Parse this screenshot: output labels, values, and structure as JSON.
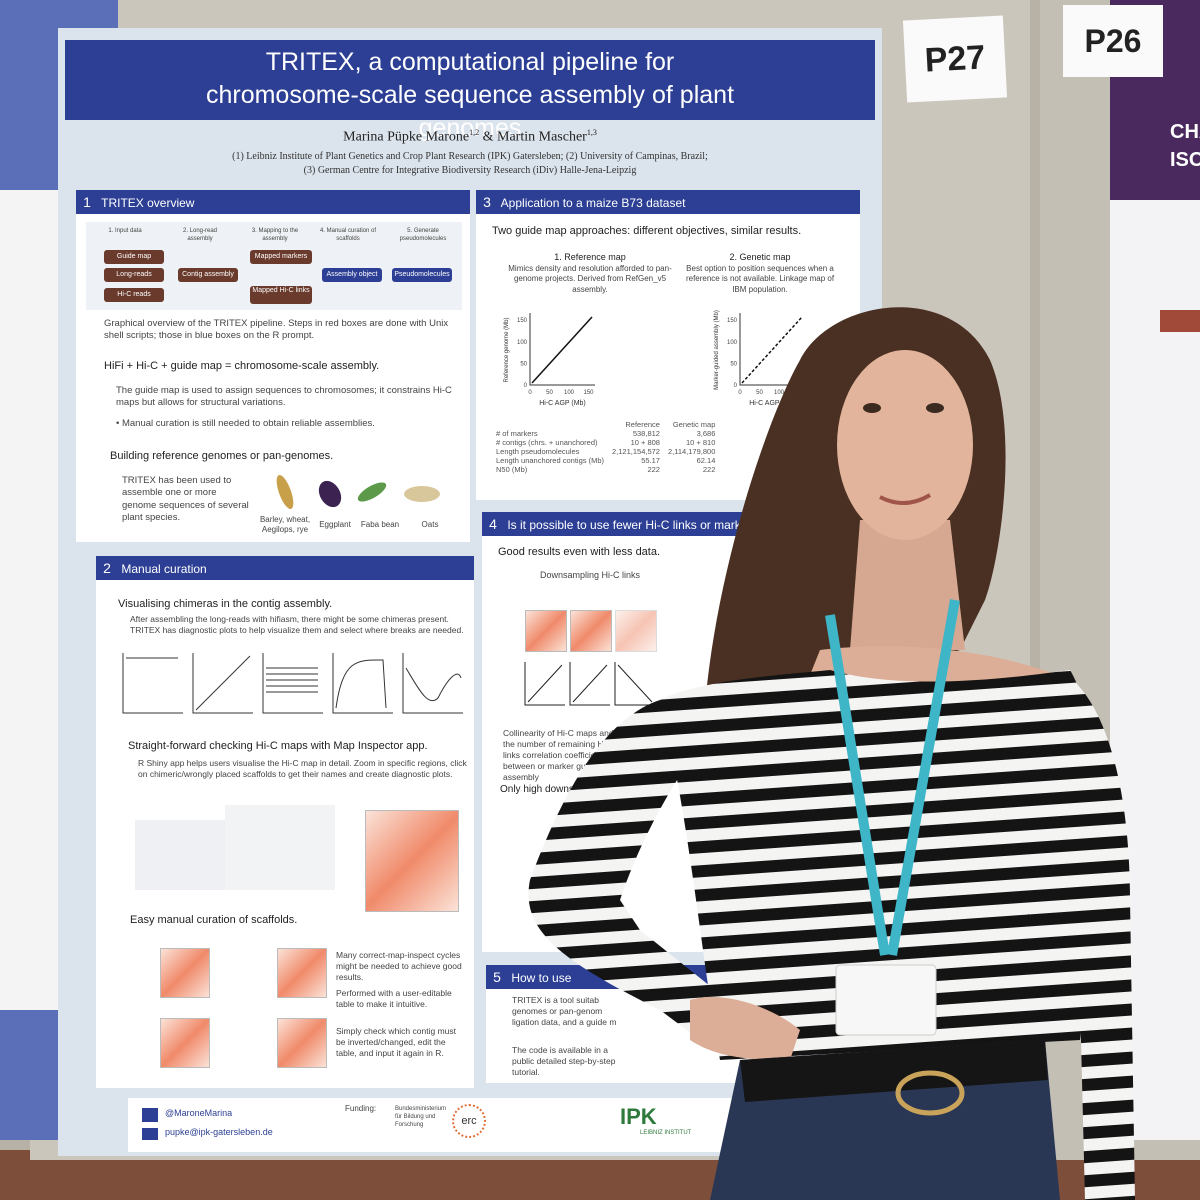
{
  "labels": {
    "poster_number": "P27",
    "neighbor_number": "P26"
  },
  "poster": {
    "title": "TRITEX, a computational pipeline for chromosome-scale sequence assembly of plant genomes",
    "authors": [
      {
        "name": "Marina Püpke Marone",
        "affil": "1,2"
      },
      {
        "name": "Martin Mascher",
        "affil": "1,3"
      }
    ],
    "author_joiner": "&",
    "affiliations": [
      "(1) Leibniz Institute of Plant Genetics and Crop Plant Research (IPK) Gatersleben; (2) University of Campinas, Brazil;",
      "(3) German Centre for Integrative Biodiversity Research (iDiv) Halle-Jena-Leipzig"
    ],
    "sections": [
      {
        "number": "1",
        "heading": "TRITEX overview",
        "steps": [
          "1. Input data",
          "2. Long-read assembly",
          "3. Mapping to the assembly",
          "4. Manual curation of scaffolds",
          "5. Generate pseudomolecules"
        ],
        "boxes": [
          "Guide map",
          "Long-reads",
          "Hi-C reads",
          "Contig assembly",
          "Mapped markers",
          "Mapped Hi-C links",
          "Assembly object",
          "Pseudomolecules"
        ],
        "caption": "Graphical overview of the TRITEX pipeline. Steps in red boxes are done with Unix shell scripts; those in blue boxes on the R prompt.",
        "subheading": "HiFi + Hi-C + guide map = chromosome-scale assembly.",
        "text": "The guide map is used to assign sequences to chromosomes; it constrains Hi-C maps but allows for structural variations.",
        "bullet": "Manual curation is still needed to obtain reliable assemblies.",
        "subheading2": "Building reference genomes or pan-genomes.",
        "text2": "TRITEX has been used to assemble one or more genome sequences of several plant species.",
        "crops": [
          "Barley, wheat, Aegilops, rye",
          "Eggplant",
          "Faba bean",
          "Oats"
        ]
      },
      {
        "number": "2",
        "heading": "Manual curation",
        "subheading": "Visualising chimeras in the contig assembly.",
        "text": "After assembling the long-reads with hifiasm, there might be some chimeras present. TRITEX has diagnostic plots to help visualize them and select where breaks are needed.",
        "subheading2": "Straight-forward checking Hi-C maps with Map Inspector app.",
        "text2": "R Shiny app helps users visualise the Hi-C map in detail. Zoom in specific regions, click on chimeric/wrongly placed scaffolds to get their names and create diagnostic plots.",
        "subheading3": "Easy manual curation of scaffolds.",
        "points": [
          "Many correct-map-inspect cycles might be needed to achieve good results.",
          "Performed with a user-editable table to make it intuitive.",
          "Simply check which contig must be inverted/changed, edit the table, and input it again in R."
        ]
      },
      {
        "number": "3",
        "heading": "Application to a maize B73 dataset",
        "subheading": "Two guide map approaches: different objectives, similar results.",
        "maps": [
          {
            "name": "1. Reference map",
            "text": "Mimics density and resolution afforded to pan-genome projects. Derived from RefGen_v5 assembly.",
            "ylabel": "Reference genome (Mb)"
          },
          {
            "name": "2. Genetic map",
            "text": "Best option to position sequences when a reference is not available. Linkage map of IBM population.",
            "ylabel": "Marker-guided assembly (Mb)"
          }
        ],
        "xlabel": "Hi-C AGP (Mb)",
        "ticks": [
          "0",
          "50",
          "100",
          "150"
        ],
        "table": [
          [
            "",
            "Reference",
            "Genetic map"
          ],
          [
            "# of markers",
            "538,812",
            "3,686"
          ],
          [
            "# contigs (chrs. + unanchored)",
            "10 + 808",
            "10 + 810"
          ],
          [
            "Length pseudomolecules",
            "2,121,154,572",
            "2,114,179,800"
          ],
          [
            "Length unanchored contigs (Mb)",
            "55.17",
            "62.14"
          ],
          [
            "N50 (Mb)",
            "222",
            "222"
          ]
        ]
      },
      {
        "number": "4",
        "heading": "Is it possible to use fewer Hi-C links or markers?",
        "subheading": "Good results even with less data.",
        "figure_title": "Downsampling Hi-C links",
        "text": "Collinearity of Hi-C maps and the number of remaining Hi-C links correlation coefficient between or marker guided assembly",
        "subheading2": "Only high downsam"
      },
      {
        "number": "5",
        "heading": "How to use",
        "text": "TRITEX is a tool suitab genomes or pan-genom ligation data, and a guide m",
        "text2": "The code is available in a public detailed step-by-step tutorial."
      }
    ],
    "footer": {
      "twitter": "@MaroneMarina",
      "email": "pupke@ipk-gatersleben.de",
      "funding": "Funding:",
      "ministry": "Bundesministerium für Bildung und Forschung",
      "erc": "erc",
      "ipk": "IPK",
      "ipk_sub": "LEIBNIZ INSTITUT"
    }
  },
  "neighbor_poster": {
    "title_lines": [
      "CHA",
      "ISOL"
    ]
  }
}
